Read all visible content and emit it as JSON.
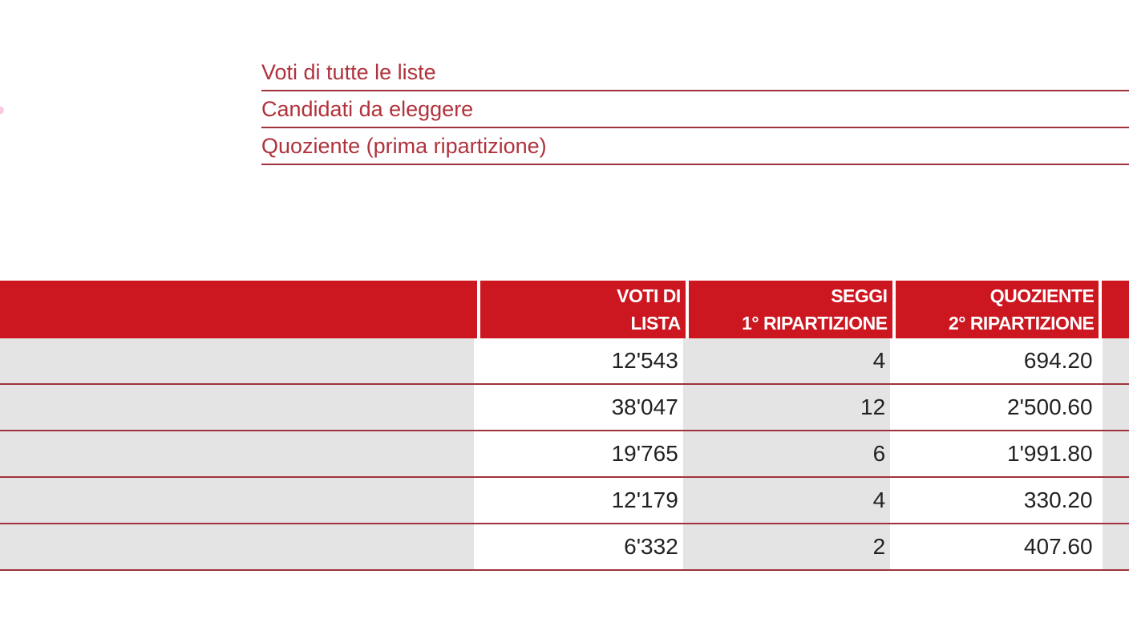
{
  "summary": {
    "rows": [
      {
        "label": "Voti di tutte le liste"
      },
      {
        "label": "Candidati da eleggere"
      },
      {
        "label": "Quoziente (prima ripartizione)"
      }
    ]
  },
  "table": {
    "headers": {
      "voti": "VOTI DI\nLISTA",
      "seggi": "SEGGI\n1° RIPARTIZIONE",
      "quoziente": "QUOZIENTE\n2° RIPARTIZIONE"
    },
    "rows": [
      {
        "voti": "12'543",
        "seggi": "4",
        "quoziente": "694.20"
      },
      {
        "voti": "38'047",
        "seggi": "12",
        "quoziente": "2'500.60"
      },
      {
        "voti": "19'765",
        "seggi": "6",
        "quoziente": "1'991.80"
      },
      {
        "voti": "12'179",
        "seggi": "4",
        "quoziente": "330.20"
      },
      {
        "voti": "6'332",
        "seggi": "2",
        "quoziente": "407.60"
      }
    ]
  },
  "colors": {
    "header_red": "#cc1620",
    "rule_red": "#a0323b",
    "label_red": "#b0323c",
    "row_shade": "#e4e4e4"
  }
}
